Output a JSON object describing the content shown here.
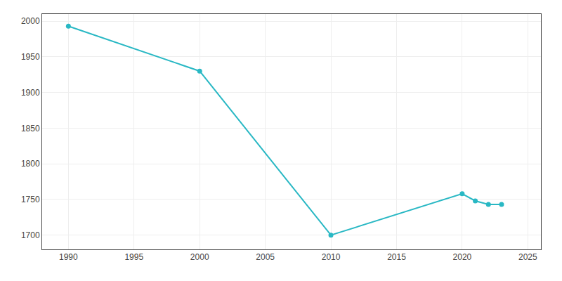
{
  "chart_data": {
    "type": "line",
    "x": [
      1990,
      2000,
      2010,
      2020,
      2021,
      2022,
      2023
    ],
    "values": [
      1993,
      1930,
      1700,
      1758,
      1748,
      1743,
      1743
    ],
    "color": "#29b8c4",
    "marker": "circle",
    "xlim": [
      1988,
      2026
    ],
    "ylim": [
      1680,
      2010
    ],
    "xticks": [
      1990,
      1995,
      2000,
      2005,
      2010,
      2015,
      2020,
      2025
    ],
    "yticks": [
      1700,
      1750,
      1800,
      1850,
      1900,
      1950,
      2000
    ],
    "grid": true
  }
}
